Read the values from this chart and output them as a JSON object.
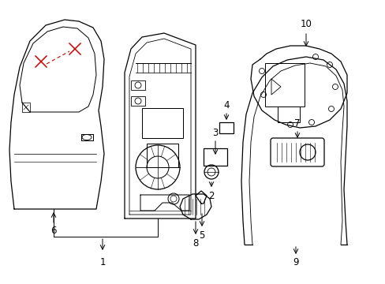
{
  "bg_color": "#ffffff",
  "line_color": "#000000",
  "red_color": "#cc0000",
  "lw": 0.9
}
